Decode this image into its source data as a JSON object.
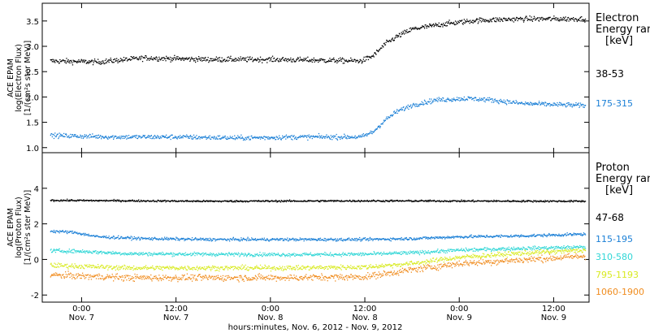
{
  "chart_data": {
    "type": "scatter",
    "x_axis": {
      "title": "hours:minutes, Nov. 6, 2012 - Nov. 9, 2012",
      "range_hours_since_nov6_0000": [
        19,
        88.5
      ],
      "ticks": [
        {
          "hours": 24,
          "time": "0:00",
          "day": "Nov. 7"
        },
        {
          "hours": 36,
          "time": "12:00",
          "day": "Nov. 7"
        },
        {
          "hours": 48,
          "time": "0:00",
          "day": "Nov. 8"
        },
        {
          "hours": 60,
          "time": "12:00",
          "day": "Nov. 8"
        },
        {
          "hours": 72,
          "time": "0:00",
          "day": "Nov. 9"
        },
        {
          "hours": 84,
          "time": "12:00",
          "day": "Nov. 9"
        }
      ]
    },
    "panels": [
      {
        "ylabel": [
          "ACE EPAM",
          "log(Electron Flux)",
          "[1/(cm²s ster MeV)]"
        ],
        "ylim": [
          0.9,
          3.85
        ],
        "yticks": [
          "1.0",
          "1.5",
          "2.0",
          "2.5",
          "3.0",
          "3.5"
        ],
        "ytick_values": [
          1.0,
          1.5,
          2.0,
          2.5,
          3.0,
          3.5
        ],
        "legend_title": [
          "Electron",
          "Energy ran",
          "[keV]"
        ],
        "series": [
          {
            "name": "38-53",
            "color": "#000000",
            "noise": 0.05,
            "points": [
              [
                20,
                2.72
              ],
              [
                26,
                2.7
              ],
              [
                32,
                2.78
              ],
              [
                40,
                2.75
              ],
              [
                48,
                2.75
              ],
              [
                56,
                2.73
              ],
              [
                59.5,
                2.72
              ],
              [
                61,
                2.82
              ],
              [
                62.5,
                3.05
              ],
              [
                64,
                3.2
              ],
              [
                66,
                3.35
              ],
              [
                70,
                3.45
              ],
              [
                74,
                3.52
              ],
              [
                80,
                3.55
              ],
              [
                88,
                3.55
              ]
            ]
          },
          {
            "name": "175-315",
            "color": "#1a7fd6",
            "noise": 0.045,
            "points": [
              [
                20,
                1.25
              ],
              [
                28,
                1.22
              ],
              [
                36,
                1.22
              ],
              [
                44,
                1.2
              ],
              [
                52,
                1.22
              ],
              [
                59.5,
                1.22
              ],
              [
                61,
                1.32
              ],
              [
                62.5,
                1.55
              ],
              [
                64,
                1.72
              ],
              [
                66,
                1.85
              ],
              [
                69,
                1.95
              ],
              [
                73,
                1.98
              ],
              [
                76,
                1.95
              ],
              [
                80,
                1.88
              ],
              [
                88,
                1.84
              ]
            ]
          }
        ]
      },
      {
        "ylabel": [
          "ACE EPAM",
          "log(Proton Flux)",
          "[1/(cm²s ster MeV)]"
        ],
        "ylim": [
          -2.4,
          6.0
        ],
        "yticks": [
          "-2",
          "0",
          "2",
          "4"
        ],
        "ytick_values": [
          -2,
          0,
          2,
          4
        ],
        "legend_title": [
          "Proton",
          "Energy ran",
          "[keV]"
        ],
        "series": [
          {
            "name": "47-68",
            "color": "#000000",
            "noise": 0.05,
            "points": [
              [
                20,
                3.35
              ],
              [
                40,
                3.3
              ],
              [
                60,
                3.32
              ],
              [
                88,
                3.3
              ]
            ]
          },
          {
            "name": "115-195",
            "color": "#1a7fd6",
            "noise": 0.08,
            "points": [
              [
                20,
                1.62
              ],
              [
                23,
                1.55
              ],
              [
                26,
                1.3
              ],
              [
                32,
                1.2
              ],
              [
                40,
                1.15
              ],
              [
                50,
                1.15
              ],
              [
                60,
                1.15
              ],
              [
                66,
                1.2
              ],
              [
                72,
                1.3
              ],
              [
                80,
                1.35
              ],
              [
                88,
                1.45
              ]
            ]
          },
          {
            "name": "310-580",
            "color": "#30d6d6",
            "noise": 0.1,
            "points": [
              [
                20,
                0.52
              ],
              [
                24,
                0.48
              ],
              [
                30,
                0.35
              ],
              [
                40,
                0.32
              ],
              [
                50,
                0.3
              ],
              [
                60,
                0.32
              ],
              [
                66,
                0.4
              ],
              [
                72,
                0.55
              ],
              [
                80,
                0.65
              ],
              [
                88,
                0.72
              ]
            ]
          },
          {
            "name": "795-1193",
            "color": "#d8ea20",
            "noise": 0.13,
            "points": [
              [
                20,
                -0.3
              ],
              [
                30,
                -0.45
              ],
              [
                40,
                -0.45
              ],
              [
                50,
                -0.45
              ],
              [
                60,
                -0.4
              ],
              [
                66,
                -0.2
              ],
              [
                72,
                0.15
              ],
              [
                80,
                0.38
              ],
              [
                88,
                0.55
              ]
            ]
          },
          {
            "name": "1060-1900",
            "color": "#f08c1e",
            "noise": 0.18,
            "points": [
              [
                20,
                -0.85
              ],
              [
                30,
                -1.0
              ],
              [
                40,
                -1.0
              ],
              [
                50,
                -1.0
              ],
              [
                60,
                -0.95
              ],
              [
                66,
                -0.55
              ],
              [
                72,
                -0.2
              ],
              [
                80,
                0.0
              ],
              [
                88,
                0.22
              ]
            ]
          }
        ]
      }
    ]
  }
}
